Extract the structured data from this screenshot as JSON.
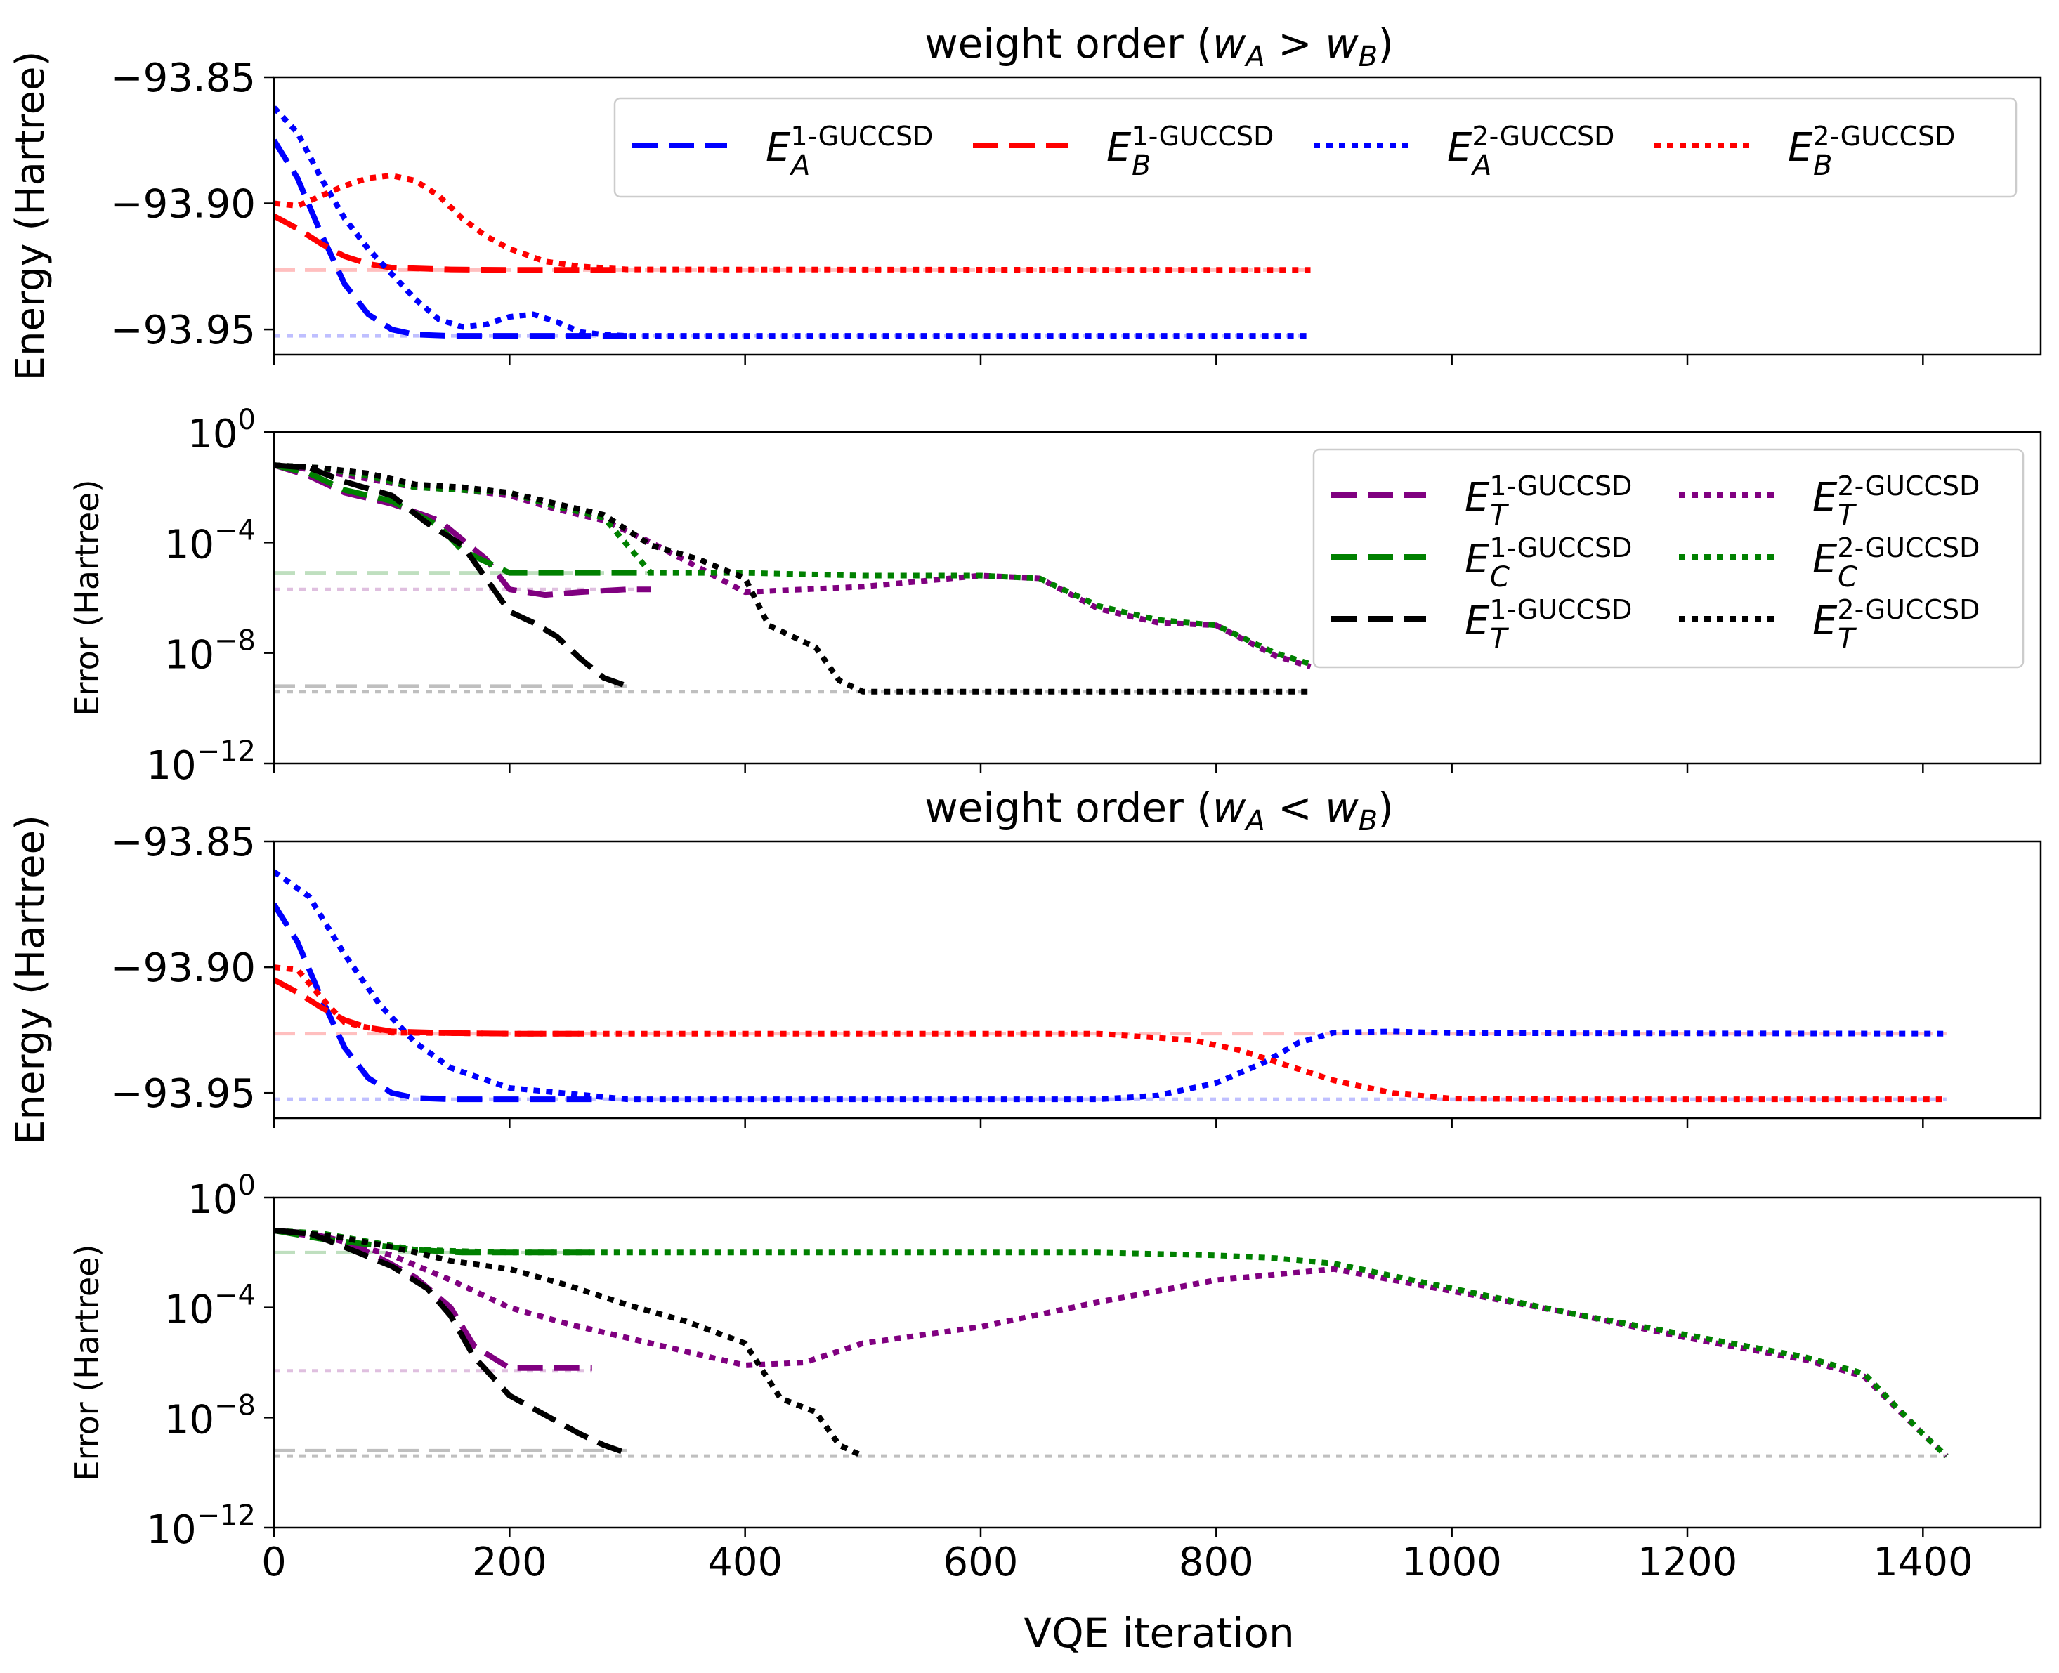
{
  "figure": {
    "xlabel": "VQE iteration",
    "x_ticks": [
      "0",
      "200",
      "400",
      "600",
      "800",
      "1000",
      "1200",
      "1400"
    ]
  },
  "chart_data": [
    {
      "type": "line",
      "id": "p1",
      "title": "weight order (w_A > w_B)",
      "title_parts": {
        "prefix": "weight order (",
        "wA": "w",
        "subA": "A",
        "op": " > ",
        "wB": "w",
        "subB": "B",
        "suffix": ")"
      },
      "ylabel": "Energy (Hartree)",
      "yscale": "linear",
      "xlim": [
        0,
        1500
      ],
      "ylim": [
        -93.96,
        -93.85
      ],
      "y_ticks": [
        "−93.85",
        "−93.90",
        "−93.95"
      ],
      "y_tick_values": [
        -93.85,
        -93.9,
        -93.95
      ],
      "legend_placement": "top-right",
      "legend": [
        {
          "base": "E",
          "sup": "1-GUCCSD",
          "sub": "A",
          "color": "#0000ff",
          "style": "dashed"
        },
        {
          "base": "E",
          "sup": "1-GUCCSD",
          "sub": "B",
          "color": "#ff0000",
          "style": "dashed"
        },
        {
          "base": "E",
          "sup": "2-GUCCSD",
          "sub": "A",
          "color": "#0000ff",
          "style": "dotted"
        },
        {
          "base": "E",
          "sup": "2-GUCCSD",
          "sub": "B",
          "color": "#ff0000",
          "style": "dotted"
        }
      ],
      "reference_lines": [
        {
          "y": -93.9264,
          "x_end": 880,
          "color": "#ff0000"
        },
        {
          "y": -93.9525,
          "x_end": 880,
          "color": "#0000ff"
        }
      ],
      "series": [
        {
          "name": "E_A 1-GUCCSD",
          "color": "#0000ff",
          "style": "dashed",
          "x": [
            0,
            20,
            40,
            60,
            80,
            100,
            120,
            150,
            200,
            300
          ],
          "y": [
            -93.875,
            -93.89,
            -93.912,
            -93.932,
            -93.944,
            -93.95,
            -93.952,
            -93.9525,
            -93.9525,
            -93.9525
          ]
        },
        {
          "name": "E_B 1-GUCCSD",
          "color": "#ff0000",
          "style": "dashed",
          "x": [
            0,
            20,
            40,
            60,
            80,
            100,
            150,
            200,
            300
          ],
          "y": [
            -93.905,
            -93.91,
            -93.916,
            -93.921,
            -93.924,
            -93.9255,
            -93.9262,
            -93.9264,
            -93.9264
          ]
        },
        {
          "name": "E_A 2-GUCCSD",
          "color": "#0000ff",
          "style": "dotted",
          "x": [
            0,
            20,
            40,
            60,
            80,
            100,
            120,
            140,
            160,
            180,
            200,
            220,
            240,
            260,
            280,
            300,
            880
          ],
          "y": [
            -93.862,
            -93.872,
            -93.89,
            -93.906,
            -93.918,
            -93.928,
            -93.938,
            -93.946,
            -93.949,
            -93.948,
            -93.945,
            -93.944,
            -93.947,
            -93.951,
            -93.952,
            -93.9525,
            -93.9525
          ]
        },
        {
          "name": "E_B 2-GUCCSD",
          "color": "#ff0000",
          "style": "dotted",
          "x": [
            0,
            20,
            40,
            60,
            80,
            100,
            120,
            140,
            160,
            180,
            200,
            230,
            260,
            300,
            880
          ],
          "y": [
            -93.9,
            -93.901,
            -93.897,
            -93.893,
            -93.89,
            -93.889,
            -93.891,
            -93.897,
            -93.906,
            -93.913,
            -93.918,
            -93.923,
            -93.925,
            -93.9262,
            -93.9264
          ]
        }
      ]
    },
    {
      "type": "line",
      "id": "p2",
      "title": "",
      "ylabel": "Error (Hartree)",
      "yscale": "log",
      "xlim": [
        0,
        1500
      ],
      "ylim_exp": [
        -12,
        0
      ],
      "y_ticks": [
        {
          "base": "10",
          "exp": "0"
        },
        {
          "base": "10",
          "exp": "−4"
        },
        {
          "base": "10",
          "exp": "−8"
        },
        {
          "base": "10",
          "exp": "−12"
        }
      ],
      "y_tick_values": [
        0,
        -4,
        -8,
        -12
      ],
      "legend_placement": "top-right",
      "legend": [
        {
          "base": "E",
          "sup": "1-GUCCSD",
          "sub": "T",
          "color": "#800080",
          "style": "dashed"
        },
        {
          "base": "E",
          "sup": "2-GUCCSD",
          "sub": "T",
          "color": "#800080",
          "style": "dotted"
        },
        {
          "base": "E",
          "sup": "1-GUCCSD",
          "sub": "C",
          "color": "#008000",
          "style": "dashed"
        },
        {
          "base": "E",
          "sup": "2-GUCCSD",
          "sub": "C",
          "color": "#008000",
          "style": "dotted"
        },
        {
          "base": "E",
          "sup": "1-GUCCSD",
          "sub": "T",
          "color": "#000000",
          "style": "dashed"
        },
        {
          "base": "E",
          "sup": "2-GUCCSD",
          "sub": "T",
          "color": "#000000",
          "style": "dotted"
        }
      ],
      "reference_lines": [
        {
          "y_exp": -5.1,
          "x_end": 320,
          "color": "#008000"
        },
        {
          "y_exp": -5.7,
          "x_end": 320,
          "color": "#800080"
        },
        {
          "y_exp": -9.2,
          "x_end": 300,
          "color": "#000000"
        },
        {
          "y_exp": -9.4,
          "x_end": 880,
          "color": "#000000"
        }
      ],
      "series": [
        {
          "name": "E_T 1-GUCCSD (purple)",
          "color": "#800080",
          "style": "dashed",
          "x": [
            0,
            30,
            60,
            100,
            140,
            180,
            200,
            230,
            260,
            300,
            320
          ],
          "y_exp": [
            -1.2,
            -1.6,
            -2.2,
            -2.6,
            -3.2,
            -4.6,
            -5.7,
            -5.9,
            -5.8,
            -5.7,
            -5.7
          ]
        },
        {
          "name": "E_T 2-GUCCSD (purple)",
          "color": "#800080",
          "style": "dotted",
          "x": [
            0,
            40,
            80,
            120,
            160,
            200,
            240,
            280,
            320,
            400,
            500,
            600,
            650,
            700,
            750,
            800,
            850,
            880
          ],
          "y_exp": [
            -1.2,
            -1.4,
            -1.7,
            -2.0,
            -2.1,
            -2.3,
            -2.8,
            -3.2,
            -4.0,
            -5.8,
            -5.6,
            -5.2,
            -5.3,
            -6.4,
            -6.9,
            -7.0,
            -8.1,
            -8.5
          ]
        },
        {
          "name": "E_C 1-GUCCSD (green)",
          "color": "#008000",
          "style": "dashed",
          "x": [
            0,
            30,
            60,
            100,
            140,
            160,
            200,
            260,
            320
          ],
          "y_exp": [
            -1.2,
            -1.5,
            -2.1,
            -2.5,
            -3.4,
            -4.3,
            -5.1,
            -5.1,
            -5.1
          ]
        },
        {
          "name": "E_C 2-GUCCSD (green)",
          "color": "#008000",
          "style": "dotted",
          "x": [
            0,
            40,
            80,
            120,
            160,
            200,
            240,
            280,
            320,
            400,
            500,
            600,
            650,
            700,
            750,
            800,
            850,
            880
          ],
          "y_exp": [
            -1.2,
            -1.3,
            -1.6,
            -2.0,
            -2.1,
            -2.2,
            -2.7,
            -3.1,
            -5.1,
            -5.1,
            -5.2,
            -5.2,
            -5.3,
            -6.3,
            -6.8,
            -7.0,
            -8.0,
            -8.4
          ]
        },
        {
          "name": "E_T 1-GUCCSD (black)",
          "color": "#000000",
          "style": "dashed",
          "x": [
            0,
            30,
            60,
            100,
            130,
            160,
            180,
            200,
            220,
            240,
            260,
            280,
            300
          ],
          "y_exp": [
            -1.2,
            -1.3,
            -1.8,
            -2.3,
            -3.3,
            -4.1,
            -5.3,
            -6.5,
            -6.9,
            -7.4,
            -8.2,
            -8.9,
            -9.2
          ]
        },
        {
          "name": "E_T 2-GUCCSD (black)",
          "color": "#000000",
          "style": "dotted",
          "x": [
            0,
            40,
            80,
            120,
            160,
            200,
            240,
            280,
            320,
            360,
            400,
            420,
            460,
            480,
            500,
            880
          ],
          "y_exp": [
            -1.2,
            -1.3,
            -1.5,
            -1.9,
            -2.0,
            -2.2,
            -2.6,
            -3.0,
            -4.1,
            -4.6,
            -5.3,
            -7.0,
            -7.8,
            -9.0,
            -9.4,
            -9.4
          ]
        }
      ]
    },
    {
      "type": "line",
      "id": "p3",
      "title": "weight order (w_A < w_B)",
      "title_parts": {
        "prefix": "weight order (",
        "wA": "w",
        "subA": "A",
        "op": " < ",
        "wB": "w",
        "subB": "B",
        "suffix": ")"
      },
      "ylabel": "Energy (Hartree)",
      "yscale": "linear",
      "xlim": [
        0,
        1500
      ],
      "ylim": [
        -93.96,
        -93.85
      ],
      "y_ticks": [
        "−93.85",
        "−93.90",
        "−93.95"
      ],
      "y_tick_values": [
        -93.85,
        -93.9,
        -93.95
      ],
      "reference_lines": [
        {
          "y": -93.9264,
          "x_end": 1420,
          "color": "#ff0000"
        },
        {
          "y": -93.9525,
          "x_end": 1420,
          "color": "#0000ff"
        }
      ],
      "series": [
        {
          "name": "E_A 1-GUCCSD",
          "color": "#0000ff",
          "style": "dashed",
          "x": [
            0,
            20,
            40,
            60,
            80,
            100,
            120,
            150,
            200,
            270
          ],
          "y": [
            -93.875,
            -93.89,
            -93.912,
            -93.932,
            -93.944,
            -93.95,
            -93.952,
            -93.9525,
            -93.9525,
            -93.9525
          ]
        },
        {
          "name": "E_B 1-GUCCSD",
          "color": "#ff0000",
          "style": "dashed",
          "x": [
            0,
            20,
            40,
            60,
            80,
            100,
            150,
            200,
            270
          ],
          "y": [
            -93.905,
            -93.91,
            -93.916,
            -93.921,
            -93.924,
            -93.9255,
            -93.9262,
            -93.9264,
            -93.9264
          ]
        },
        {
          "name": "E_A 2-GUCCSD",
          "color": "#0000ff",
          "style": "dotted",
          "x": [
            0,
            30,
            60,
            90,
            120,
            150,
            200,
            300,
            500,
            700,
            750,
            800,
            840,
            870,
            900,
            950,
            1000,
            1420
          ],
          "y": [
            -93.862,
            -93.872,
            -93.895,
            -93.915,
            -93.93,
            -93.94,
            -93.948,
            -93.9525,
            -93.9525,
            -93.9525,
            -93.951,
            -93.946,
            -93.938,
            -93.93,
            -93.926,
            -93.9255,
            -93.9262,
            -93.9264
          ]
        },
        {
          "name": "E_B 2-GUCCSD",
          "color": "#ff0000",
          "style": "dotted",
          "x": [
            0,
            20,
            40,
            60,
            100,
            200,
            500,
            700,
            780,
            820,
            860,
            900,
            950,
            1000,
            1100,
            1420
          ],
          "y": [
            -93.9,
            -93.901,
            -93.912,
            -93.922,
            -93.926,
            -93.9264,
            -93.9264,
            -93.9264,
            -93.929,
            -93.933,
            -93.939,
            -93.945,
            -93.95,
            -93.9522,
            -93.9525,
            -93.9525
          ]
        }
      ]
    },
    {
      "type": "line",
      "id": "p4",
      "title": "",
      "ylabel": "Error (Hartree)",
      "yscale": "log",
      "xlim": [
        0,
        1500
      ],
      "ylim_exp": [
        -12,
        0
      ],
      "y_ticks": [
        {
          "base": "10",
          "exp": "0"
        },
        {
          "base": "10",
          "exp": "−4"
        },
        {
          "base": "10",
          "exp": "−8"
        },
        {
          "base": "10",
          "exp": "−12"
        }
      ],
      "y_tick_values": [
        0,
        -4,
        -8,
        -12
      ],
      "reference_lines": [
        {
          "y_exp": -2.0,
          "x_end": 270,
          "color": "#008000"
        },
        {
          "y_exp": -6.3,
          "x_end": 270,
          "color": "#800080"
        },
        {
          "y_exp": -9.2,
          "x_end": 300,
          "color": "#000000"
        },
        {
          "y_exp": -9.4,
          "x_end": 1420,
          "color": "#000000"
        }
      ],
      "series": [
        {
          "name": "E_T 1-GUCCSD (purple)",
          "color": "#800080",
          "style": "dashed",
          "x": [
            0,
            30,
            60,
            90,
            120,
            150,
            170,
            200,
            270
          ],
          "y_exp": [
            -1.2,
            -1.3,
            -1.6,
            -2.2,
            -2.9,
            -4.0,
            -5.4,
            -6.2,
            -6.2
          ]
        },
        {
          "name": "E_T 2-GUCCSD (purple)",
          "color": "#800080",
          "style": "dotted",
          "x": [
            0,
            50,
            100,
            150,
            200,
            250,
            300,
            350,
            400,
            450,
            500,
            600,
            700,
            800,
            900,
            1000,
            1100,
            1200,
            1300,
            1350,
            1400,
            1420
          ],
          "y_exp": [
            -1.2,
            -1.5,
            -2.1,
            -3.0,
            -4.0,
            -4.6,
            -5.1,
            -5.6,
            -6.1,
            -6.0,
            -5.3,
            -4.7,
            -3.8,
            -3.0,
            -2.6,
            -3.4,
            -4.2,
            -5.1,
            -5.9,
            -6.5,
            -8.6,
            -9.4
          ]
        },
        {
          "name": "E_C 1-GUCCSD (green)",
          "color": "#008000",
          "style": "dashed",
          "x": [
            0,
            40,
            80,
            120,
            160,
            200,
            270
          ],
          "y_exp": [
            -1.2,
            -1.5,
            -1.7,
            -1.9,
            -2.0,
            -2.0,
            -2.0
          ]
        },
        {
          "name": "E_C 2-GUCCSD (green)",
          "color": "#008000",
          "style": "dotted",
          "x": [
            0,
            40,
            80,
            120,
            200,
            300,
            500,
            700,
            800,
            850,
            900,
            1000,
            1100,
            1200,
            1300,
            1350,
            1400,
            1420
          ],
          "y_exp": [
            -1.2,
            -1.3,
            -1.6,
            -1.9,
            -2.0,
            -2.0,
            -2.0,
            -2.0,
            -2.1,
            -2.2,
            -2.4,
            -3.3,
            -4.2,
            -5.0,
            -5.8,
            -6.4,
            -8.6,
            -9.4
          ]
        },
        {
          "name": "E_T 1-GUCCSD (black)",
          "color": "#000000",
          "style": "dashed",
          "x": [
            0,
            30,
            60,
            100,
            130,
            150,
            170,
            200,
            230,
            260,
            280,
            300
          ],
          "y_exp": [
            -1.2,
            -1.3,
            -1.8,
            -2.5,
            -3.3,
            -4.3,
            -5.8,
            -7.2,
            -7.9,
            -8.6,
            -9.0,
            -9.3
          ]
        },
        {
          "name": "E_T 2-GUCCSD (black)",
          "color": "#000000",
          "style": "dotted",
          "x": [
            0,
            50,
            100,
            150,
            200,
            250,
            300,
            350,
            400,
            430,
            460,
            480,
            500
          ],
          "y_exp": [
            -1.2,
            -1.4,
            -1.8,
            -2.3,
            -2.6,
            -3.2,
            -3.9,
            -4.5,
            -5.3,
            -7.3,
            -7.8,
            -9.0,
            -9.4
          ]
        }
      ]
    }
  ]
}
